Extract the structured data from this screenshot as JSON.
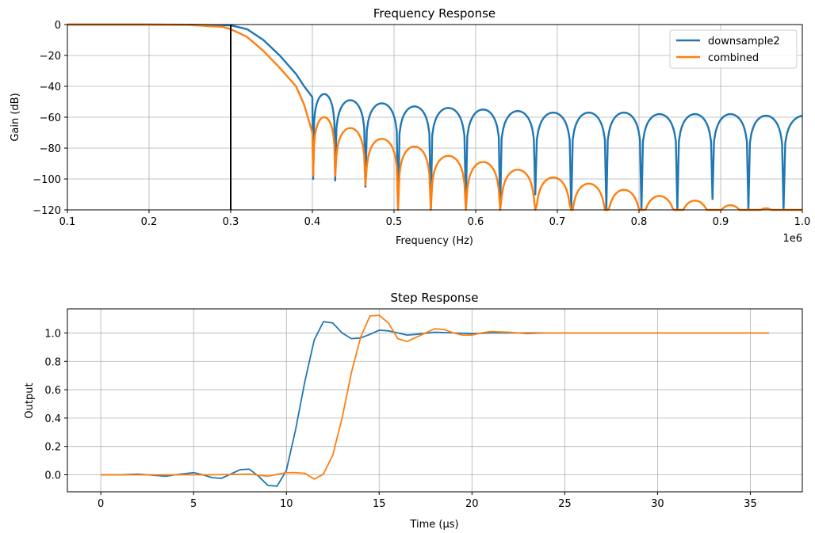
{
  "figure": {
    "background": "#ffffff"
  },
  "series_colors": {
    "downsample2": "#1f77b4",
    "combined": "#ff7f0e",
    "cutoff_marker": "#000000"
  },
  "chart_data": [
    {
      "type": "line",
      "title": "Frequency Response",
      "xlabel": "Frequency (Hz)",
      "ylabel": "Gain (dB)",
      "x_scale_note": "1e6",
      "xlim": [
        0.1,
        1.0
      ],
      "ylim": [
        -120,
        0
      ],
      "x_ticks": [
        "0.1",
        "0.2",
        "0.3",
        "0.4",
        "0.5",
        "0.6",
        "0.7",
        "0.8",
        "0.9",
        "1.0"
      ],
      "y_ticks": [
        "0",
        "−20",
        "−40",
        "−60",
        "−80",
        "−100",
        "−120"
      ],
      "grid": true,
      "legend": "top-right",
      "vertical_marker_x": 0.3,
      "series": [
        {
          "name": "downsample2",
          "color": "#1f77b4",
          "passband": {
            "x": [
              0.1,
              0.2,
              0.25,
              0.3,
              0.32,
              0.34,
              0.36,
              0.38,
              0.39,
              0.4
            ],
            "y": [
              0,
              0,
              -0.1,
              -0.5,
              -3,
              -10,
              -20,
              -32,
              -40,
              -47
            ]
          },
          "nulls": [
            0.401,
            0.428,
            0.465,
            0.505,
            0.545,
            0.588,
            0.63,
            0.673,
            0.717,
            0.76,
            0.803,
            0.847,
            0.89,
            0.934,
            0.977
          ],
          "null_depths": [
            -100,
            -101,
            -105,
            -120,
            -120,
            -115,
            -120,
            -110,
            -120,
            -120,
            -120,
            -120,
            -113,
            -120,
            -120
          ],
          "lobe_peaks": [
            -45,
            -49,
            -51,
            -53,
            -54,
            -55,
            -56,
            -57,
            -57,
            -57,
            -58,
            -58,
            -58,
            -59,
            -59
          ]
        },
        {
          "name": "combined",
          "color": "#ff7f0e",
          "passband": {
            "x": [
              0.1,
              0.2,
              0.25,
              0.29,
              0.3,
              0.32,
              0.34,
              0.36,
              0.38,
              0.39,
              0.4
            ],
            "y": [
              0,
              0,
              -0.3,
              -1.5,
              -3,
              -8,
              -17,
              -28,
              -40,
              -52,
              -70
            ]
          },
          "nulls": [
            0.401,
            0.428,
            0.465,
            0.505,
            0.545,
            0.588,
            0.63,
            0.673,
            0.717,
            0.76,
            0.803,
            0.847,
            0.89,
            0.934,
            0.977
          ],
          "null_depths": [
            -98,
            -98,
            -104,
            -120,
            -120,
            -120,
            -120,
            -120,
            -120,
            -120,
            -120,
            -120,
            -120,
            -120,
            -120
          ],
          "lobe_peaks": [
            -60,
            -67,
            -74,
            -79,
            -85,
            -89,
            -94,
            -99,
            -103,
            -107,
            -111,
            -114,
            -117,
            -119,
            -120
          ]
        }
      ]
    },
    {
      "type": "line",
      "title": "Step Response",
      "xlabel": "Time (µs)",
      "ylabel": "Output",
      "xlim": [
        -1.8,
        37.8
      ],
      "ylim": [
        -0.12,
        1.17
      ],
      "x_ticks": [
        "0",
        "5",
        "10",
        "15",
        "20",
        "25",
        "30",
        "35"
      ],
      "y_ticks": [
        "0.0",
        "0.2",
        "0.4",
        "0.6",
        "0.8",
        "1.0"
      ],
      "grid": true,
      "series": [
        {
          "name": "downsample2",
          "color": "#1f77b4",
          "x": [
            0,
            1,
            2,
            3,
            3.5,
            4,
            5,
            5.5,
            6,
            6.5,
            7,
            7.5,
            8,
            8.5,
            9,
            9.5,
            10,
            10.5,
            11,
            11.5,
            12,
            12.5,
            13,
            13.5,
            14,
            14.5,
            15,
            15.5,
            16,
            16.5,
            17,
            18,
            19,
            20,
            21,
            22,
            23,
            24,
            25,
            26,
            28,
            30,
            32,
            34,
            36
          ],
          "y": [
            0,
            0,
            0.005,
            -0.005,
            -0.01,
            0,
            0.015,
            0,
            -0.02,
            -0.025,
            0.005,
            0.035,
            0.04,
            -0.01,
            -0.075,
            -0.08,
            0.03,
            0.32,
            0.66,
            0.95,
            1.08,
            1.07,
            1.0,
            0.96,
            0.965,
            0.99,
            1.02,
            1.015,
            1.0,
            0.985,
            0.99,
            1.005,
            1.0,
            0.995,
            1.0,
            1.0,
            1.0,
            1.0,
            1.0,
            1.0,
            1.0,
            1.0,
            1.0,
            1.0,
            1.0
          ]
        },
        {
          "name": "combined",
          "color": "#ff7f0e",
          "x": [
            0,
            2,
            4,
            6,
            8,
            9,
            10,
            10.5,
            11,
            11.5,
            12,
            12.5,
            13,
            13.5,
            14,
            14.5,
            15,
            15.5,
            16,
            16.5,
            17,
            17.5,
            18,
            18.5,
            19,
            19.5,
            20,
            20.5,
            21,
            22,
            23,
            24,
            25,
            26,
            28,
            30,
            32,
            34,
            36
          ],
          "y": [
            0,
            0,
            0,
            0,
            0.005,
            -0.01,
            0.015,
            0.015,
            0.01,
            -0.03,
            0.005,
            0.14,
            0.4,
            0.72,
            0.97,
            1.12,
            1.125,
            1.07,
            0.96,
            0.94,
            0.97,
            1.0,
            1.03,
            1.025,
            1.0,
            0.985,
            0.985,
            1.0,
            1.01,
            1.005,
            0.995,
            1.0,
            1.0,
            1.0,
            1.0,
            1.0,
            1.0,
            1.0,
            1.0
          ]
        }
      ]
    }
  ]
}
